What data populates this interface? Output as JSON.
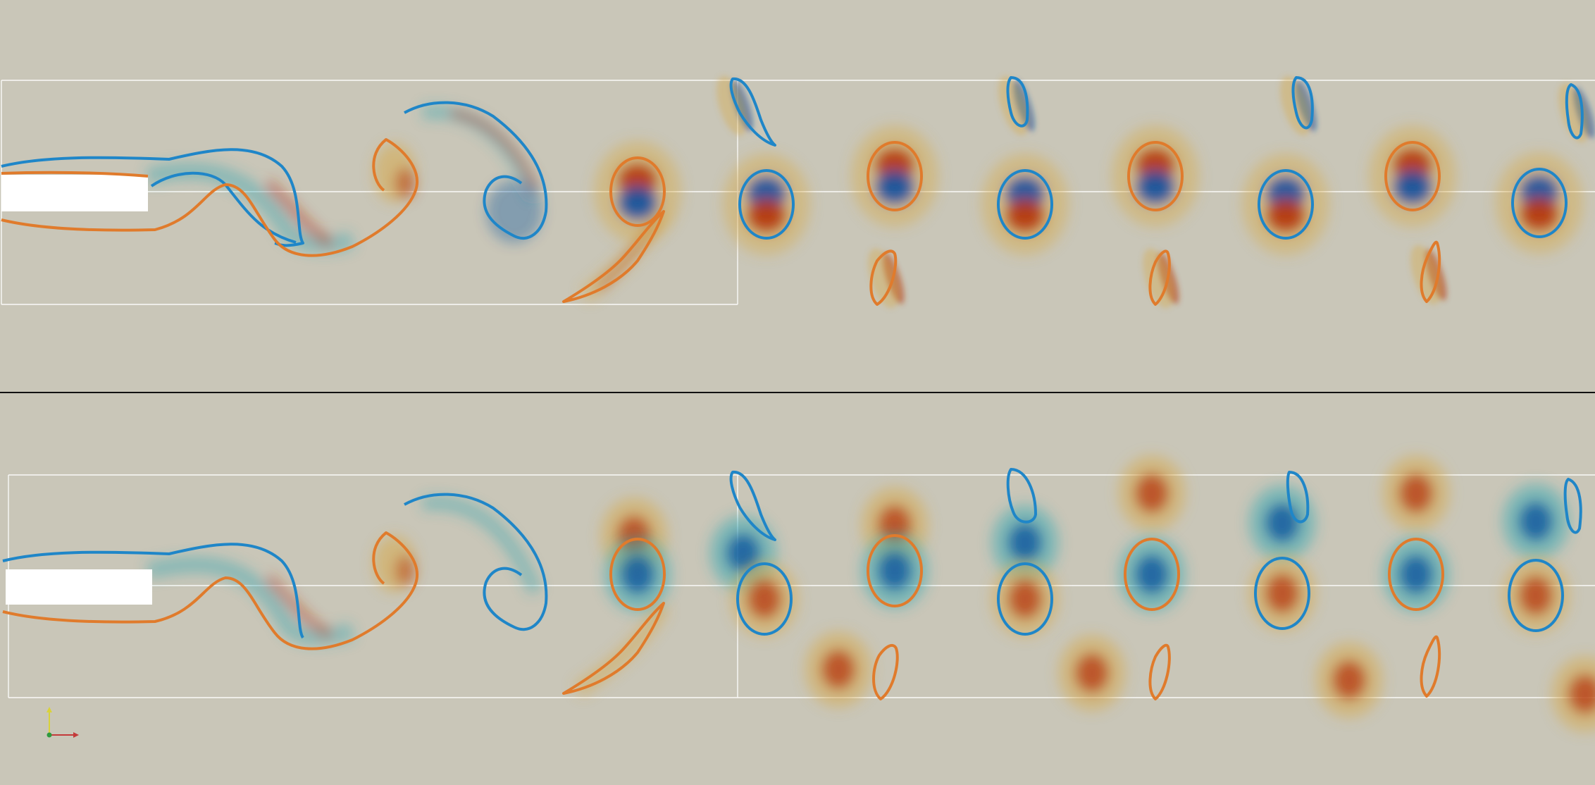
{
  "colors": {
    "background": "#c9c6b8",
    "positive_vorticity": "#b5350c",
    "negative_vorticity": "#0a4f9e",
    "warm_halo": "#d7aa4c",
    "cool_halo": "#3aa9b4",
    "contour_orange": "#e07b2c",
    "contour_blue": "#1f86c8",
    "divider": "#111111",
    "grid_lines": "#ffffff",
    "body_fill": "#ffffff"
  },
  "panels": [
    {
      "name": "top-panel",
      "mode": "symmetric-dipoles"
    },
    {
      "name": "bottom-panel",
      "mode": "monopoles"
    }
  ],
  "orientation_axes": {
    "icon": "xyz-orientation-axes-icon",
    "colors": [
      "#d9d23a",
      "#c43a3a",
      "#2f9a3f"
    ]
  }
}
